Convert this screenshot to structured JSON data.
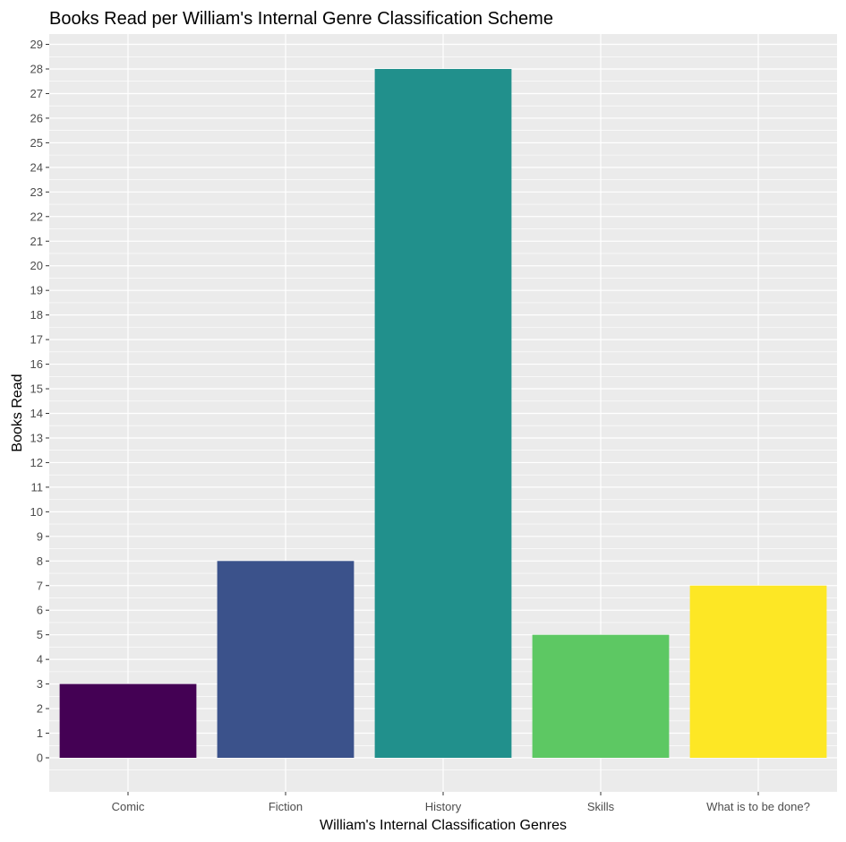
{
  "chart_data": {
    "type": "bar",
    "title": "Books Read per William's Internal Genre Classification Scheme",
    "xlabel": "William's Internal Classification Genres",
    "ylabel": "Books Read",
    "categories": [
      "Comic",
      "Fiction",
      "History",
      "Skills",
      "What is to be done?"
    ],
    "values": [
      3,
      8,
      28,
      5,
      7
    ],
    "colors": [
      "#440154",
      "#3b528b",
      "#21908c",
      "#5dc863",
      "#fde725"
    ],
    "ylim": [
      0,
      29
    ],
    "yticks": [
      0,
      1,
      2,
      3,
      4,
      5,
      6,
      7,
      8,
      9,
      10,
      11,
      12,
      13,
      14,
      15,
      16,
      17,
      18,
      19,
      20,
      21,
      22,
      23,
      24,
      25,
      26,
      27,
      28,
      29
    ],
    "grid": true,
    "legend": "none",
    "panel_background": "#ebebeb"
  }
}
